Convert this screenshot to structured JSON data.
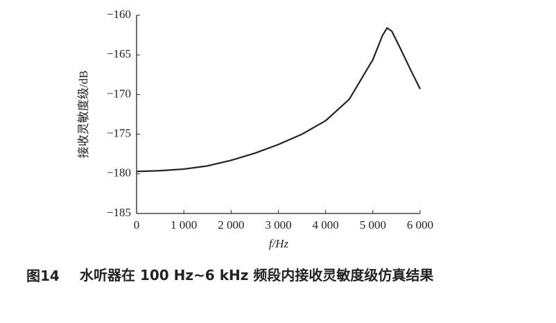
{
  "chart_data": {
    "type": "line",
    "y_label": "接收灵敏度级/dB",
    "x_label": "f/Hz",
    "x": [
      0,
      500,
      1000,
      1500,
      2000,
      2500,
      3000,
      3500,
      4000,
      4500,
      5000,
      5200,
      5300,
      5400,
      5600,
      5800,
      6000
    ],
    "series": [
      {
        "color": "#222222",
        "values": [
          -179.7,
          -179.6,
          -179.4,
          -179.0,
          -178.3,
          -177.4,
          -176.3,
          -175.0,
          -173.3,
          -170.6,
          -165.6,
          -162.6,
          -161.6,
          -162.0,
          -164.4,
          -166.9,
          -169.3
        ]
      }
    ],
    "xlim": [
      0,
      6000
    ],
    "ylim": [
      -185,
      -160
    ],
    "xticks": [
      0,
      {
        "value": 1000,
        "label": "1 000"
      },
      {
        "value": 2000,
        "label": "2 000"
      },
      {
        "value": 3000,
        "label": "3 000"
      },
      {
        "value": 4000,
        "label": "4 000"
      },
      {
        "value": 5000,
        "label": "5 000"
      },
      {
        "value": 6000,
        "label": "6 000"
      }
    ],
    "yticks": [
      {
        "value": -185,
        "label": "−185"
      },
      {
        "value": -180,
        "label": "−180"
      },
      {
        "value": -175,
        "label": "−175"
      },
      {
        "value": -170,
        "label": "−170"
      },
      {
        "value": -165,
        "label": "−165"
      },
      {
        "value": -160,
        "label": "−160"
      }
    ]
  },
  "caption": {
    "label": "图14",
    "text": "水听器在 100 Hz~6 kHz 频段内接收灵敏度级仿真结果"
  }
}
